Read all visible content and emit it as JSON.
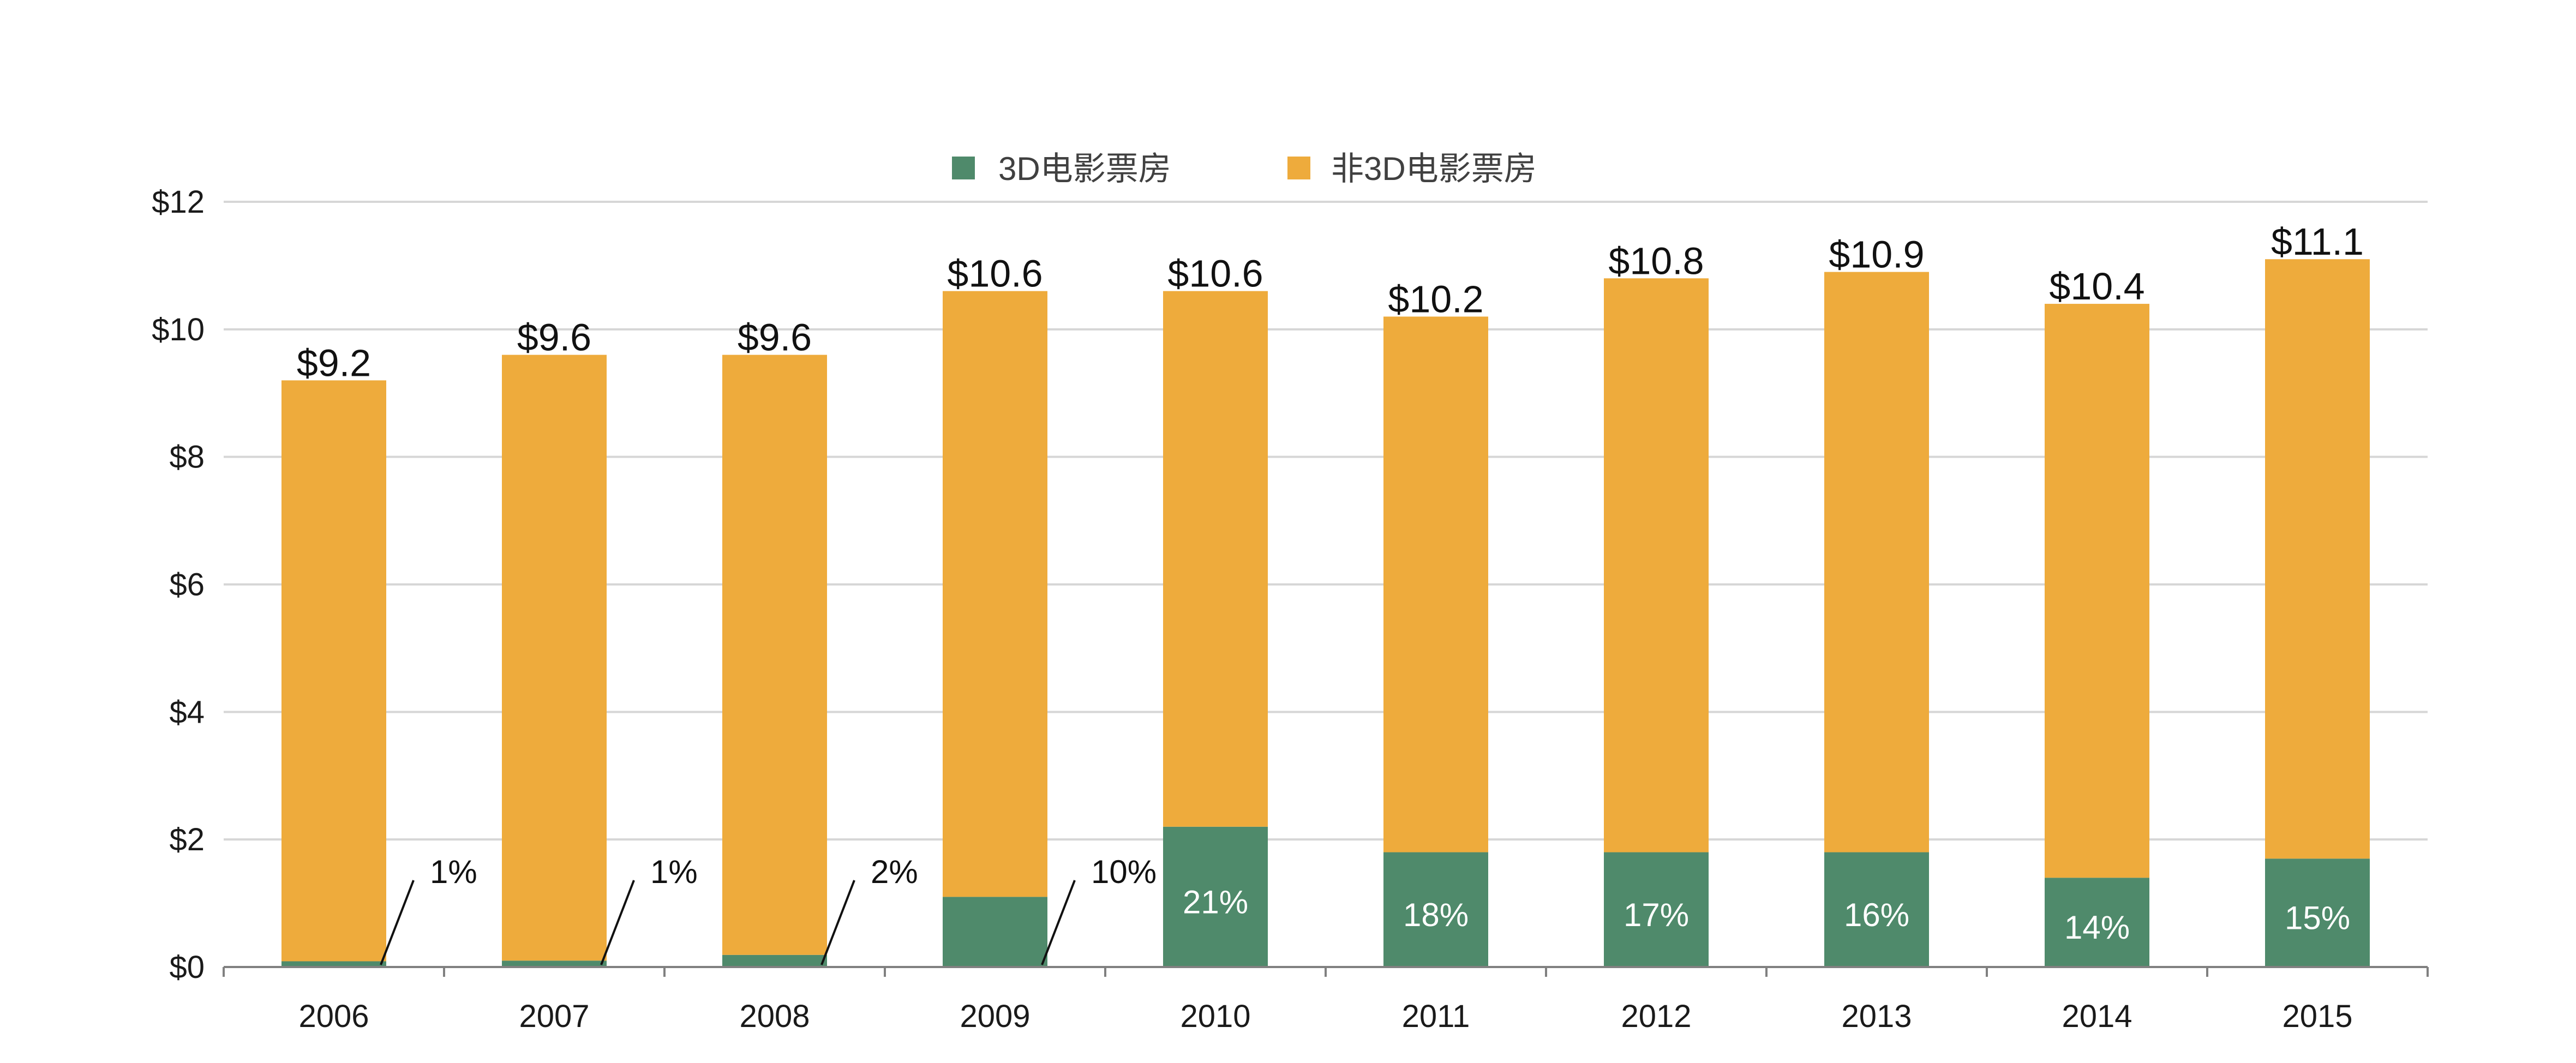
{
  "chart_data": {
    "type": "bar",
    "stacked": true,
    "title": "",
    "xlabel": "",
    "ylabel": "",
    "categories": [
      "2006",
      "2007",
      "2008",
      "2009",
      "2010",
      "2011",
      "2012",
      "2013",
      "2014",
      "2015"
    ],
    "ylim": [
      0,
      12
    ],
    "yticks": [
      0,
      2,
      4,
      6,
      8,
      10,
      12
    ],
    "ytick_labels": [
      "$0",
      "$2",
      "$4",
      "$6",
      "$8",
      "$10",
      "$12"
    ],
    "grid": true,
    "legend_position": "top-center",
    "series": [
      {
        "name": "3D电影票房",
        "color": "#4f8a6b",
        "values": [
          0.09,
          0.1,
          0.19,
          1.1,
          2.2,
          1.8,
          1.8,
          1.8,
          1.4,
          1.7
        ]
      },
      {
        "name": "非3D电影票房",
        "color": "#eeab3c",
        "values": [
          9.11,
          9.5,
          9.41,
          9.5,
          8.4,
          8.4,
          9.0,
          9.1,
          9.0,
          9.4
        ]
      }
    ],
    "total_labels": [
      "$9.2",
      "$9.6",
      "$9.6",
      "$10.6",
      "$10.6",
      "$10.2",
      "$10.8",
      "$10.9",
      "$10.4",
      "$11.1"
    ],
    "share_labels": [
      "1%",
      "1%",
      "2%",
      "10%",
      "21%",
      "18%",
      "17%",
      "16%",
      "14%",
      "15%"
    ],
    "share_label_outside": [
      true,
      true,
      true,
      true,
      false,
      false,
      false,
      false,
      false,
      false
    ]
  }
}
